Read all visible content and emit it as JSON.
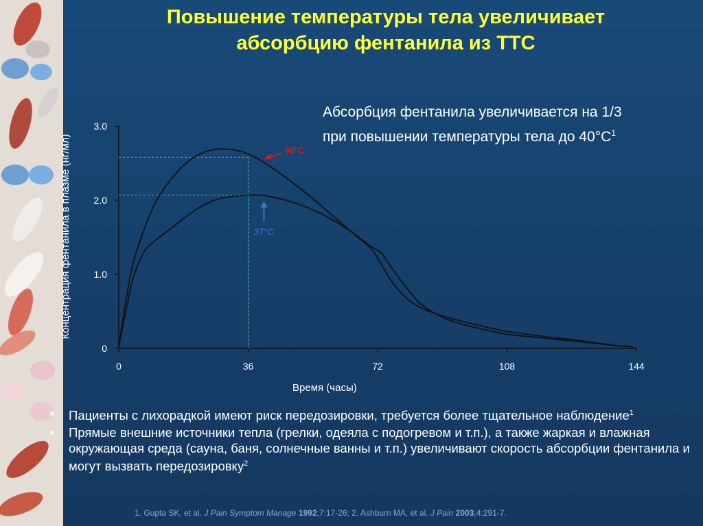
{
  "title": {
    "line1": "Повышение температуры тела увеличивает",
    "line2": "абсорбцию фентанила из ТТС"
  },
  "annotation": {
    "line1": "Абсорбция фентанила увеличивается на 1/3",
    "line2": "при повышении температуры тела до 40°С",
    "sup": "1"
  },
  "bullets": [
    {
      "text": "Пациенты с лихорадкой имеют риск передозировки, требуется более тщательное наблюдение",
      "sup": "1"
    },
    {
      "text": "Прямые внешние источники тепла (грелки, одеяла с подогревом и т.п.), а также жаркая и влажная окружающая среда (сауна, баня, солнечные ванны и т.п.) увеличивают скорость абсорбции фентанила и могут вызвать передозировку",
      "sup": "2"
    }
  ],
  "bullet_symbol": "•",
  "refs": {
    "r1_authors": "1. Gupta SK, et al.",
    "r1_journal": "J Pain Symptom Manage",
    "r1_year": "1992",
    "r1_pages": ";7:17-26; ",
    "r2_authors": "2. Ashburn MA, et al.",
    "r2_journal": "J Pain",
    "r2_year": "2003",
    "r2_pages": ";4:291-7."
  },
  "chart_data": {
    "type": "line",
    "title": "",
    "xlabel": "Время (часы)",
    "ylabel": "Концентрация фентанила в плазме (нг/мл)",
    "xlim": [
      0,
      144
    ],
    "ylim": [
      0,
      3.0
    ],
    "xticks": [
      0,
      36,
      72,
      108,
      144
    ],
    "xtick_labels": [
      "0",
      "36",
      "72",
      "108",
      "144"
    ],
    "yticks": [
      0,
      1,
      2,
      3
    ],
    "ytick_labels": [
      "0",
      "1.0",
      "2.0",
      "3.0"
    ],
    "grid": false,
    "series": [
      {
        "name": "40°C",
        "color": "#111111",
        "x": [
          0,
          2,
          4,
          7,
          10,
          14,
          18,
          22,
          26,
          30,
          34,
          38,
          42,
          48,
          54,
          60,
          66,
          70,
          72,
          76,
          80,
          84,
          90,
          96,
          102,
          108,
          114,
          120,
          126,
          132,
          138,
          143
        ],
        "y": [
          0.02,
          0.65,
          1.15,
          1.6,
          1.95,
          2.25,
          2.47,
          2.61,
          2.68,
          2.69,
          2.66,
          2.58,
          2.46,
          2.25,
          2.02,
          1.77,
          1.52,
          1.36,
          1.22,
          0.9,
          0.68,
          0.55,
          0.44,
          0.36,
          0.29,
          0.23,
          0.19,
          0.15,
          0.12,
          0.08,
          0.04,
          0.02
        ]
      },
      {
        "name": "37°C",
        "color": "#111111",
        "x": [
          0,
          2,
          4,
          7,
          10,
          14,
          18,
          22,
          26,
          30,
          34,
          38,
          42,
          48,
          54,
          60,
          66,
          70,
          73,
          76,
          80,
          84,
          90,
          96,
          102,
          108,
          114,
          120,
          126,
          132,
          138,
          143
        ],
        "y": [
          0.02,
          0.5,
          0.95,
          1.3,
          1.45,
          1.6,
          1.75,
          1.89,
          1.99,
          2.04,
          2.06,
          2.07,
          2.05,
          1.98,
          1.87,
          1.72,
          1.53,
          1.38,
          1.29,
          1.08,
          0.82,
          0.6,
          0.42,
          0.32,
          0.25,
          0.19,
          0.16,
          0.13,
          0.1,
          0.07,
          0.04,
          0.02
        ]
      }
    ],
    "reference_lines": [
      {
        "series": "40°C",
        "x": 36,
        "y": 2.58,
        "color": "#3bb0a8"
      },
      {
        "series": "37°C",
        "x": 36,
        "y": 2.07,
        "color": "#3bb0a8"
      }
    ],
    "annotations": [
      {
        "label": "40°C",
        "color": "#e01818",
        "x": 40,
        "y": 2.58
      },
      {
        "label": "37°C",
        "color": "#3a78c8",
        "x": 40,
        "y": 2.07
      }
    ]
  }
}
